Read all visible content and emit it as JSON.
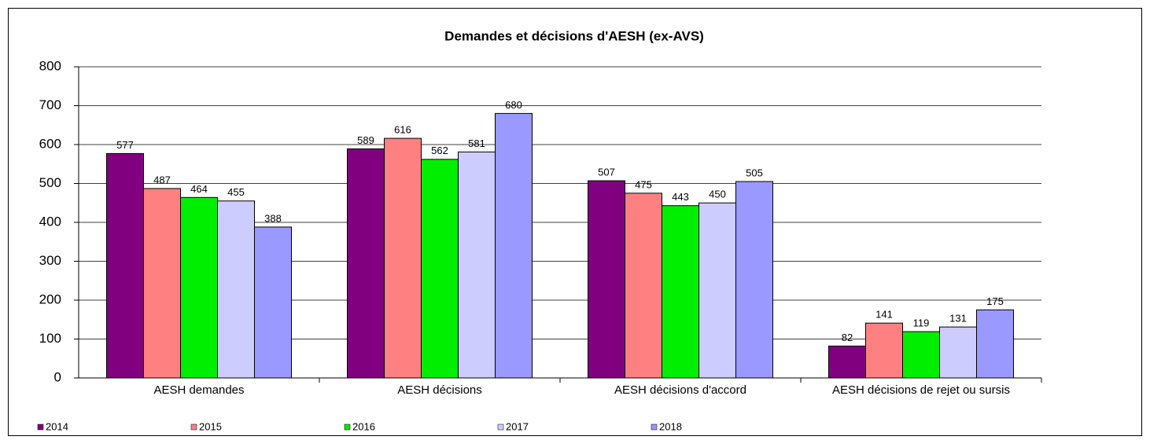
{
  "chart_data": {
    "type": "bar",
    "title": "Demandes et décisions d'AESH (ex-AVS)",
    "categories": [
      "AESH demandes",
      "AESH décisions",
      "AESH décisions d'accord",
      "AESH décisions de rejet ou sursis"
    ],
    "series": [
      {
        "name": "2014",
        "color": "#800080",
        "values": [
          577,
          589,
          507,
          82
        ]
      },
      {
        "name": "2015",
        "color": "#ff8080",
        "values": [
          487,
          616,
          475,
          141
        ]
      },
      {
        "name": "2016",
        "color": "#00ee00",
        "values": [
          464,
          562,
          443,
          119
        ]
      },
      {
        "name": "2017",
        "color": "#ccccff",
        "values": [
          455,
          581,
          450,
          131
        ]
      },
      {
        "name": "2018",
        "color": "#9999ff",
        "values": [
          388,
          680,
          505,
          175
        ]
      }
    ],
    "ylim": [
      0,
      800
    ],
    "yticks": [
      0,
      100,
      200,
      300,
      400,
      500,
      600,
      700,
      800
    ],
    "grid": true,
    "legend": "bottom"
  }
}
